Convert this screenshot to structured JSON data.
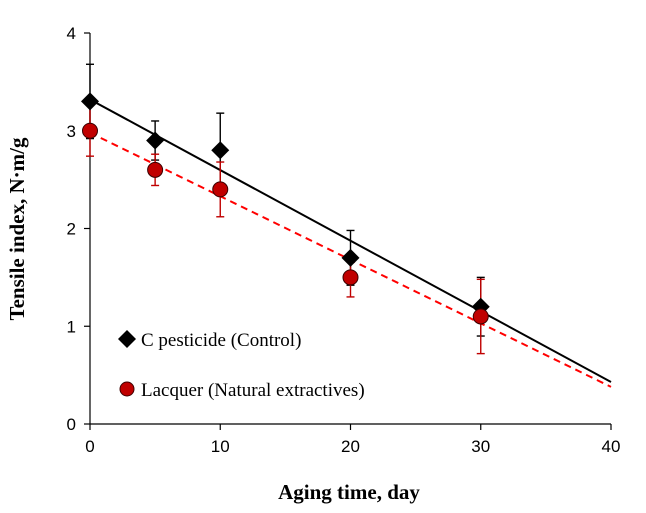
{
  "chart_data": {
    "type": "scatter",
    "xlabel": "Aging time, day",
    "ylabel": "Tensile index, N·m/g",
    "xlim": [
      0,
      40
    ],
    "ylim": [
      0,
      4
    ],
    "xticks": [
      0,
      10,
      20,
      30,
      40
    ],
    "yticks": [
      0,
      1,
      2,
      3,
      4
    ],
    "legend_position": "bottom-left",
    "series": [
      {
        "name": "C pesticide (Control)",
        "marker": "diamond",
        "color": "#000000",
        "marker_color": "#000000",
        "x": [
          0,
          5,
          10,
          20,
          30
        ],
        "y": [
          3.3,
          2.9,
          2.8,
          1.7,
          1.2
        ],
        "err": [
          0.38,
          0.2,
          0.38,
          0.28,
          0.3
        ],
        "trendline": {
          "x": [
            0,
            40
          ],
          "y": [
            3.32,
            0.43
          ],
          "style": "solid"
        }
      },
      {
        "name": "Lacquer (Natural extractives)",
        "marker": "circle",
        "color": "#ff0000",
        "marker_color": "#c00000",
        "x": [
          0,
          5,
          10,
          20,
          30
        ],
        "y": [
          3.0,
          2.6,
          2.4,
          1.5,
          1.1
        ],
        "err": [
          0.26,
          0.16,
          0.28,
          0.2,
          0.38
        ],
        "trendline": {
          "x": [
            0,
            40
          ],
          "y": [
            2.98,
            0.38
          ],
          "style": "dashed"
        }
      }
    ]
  }
}
